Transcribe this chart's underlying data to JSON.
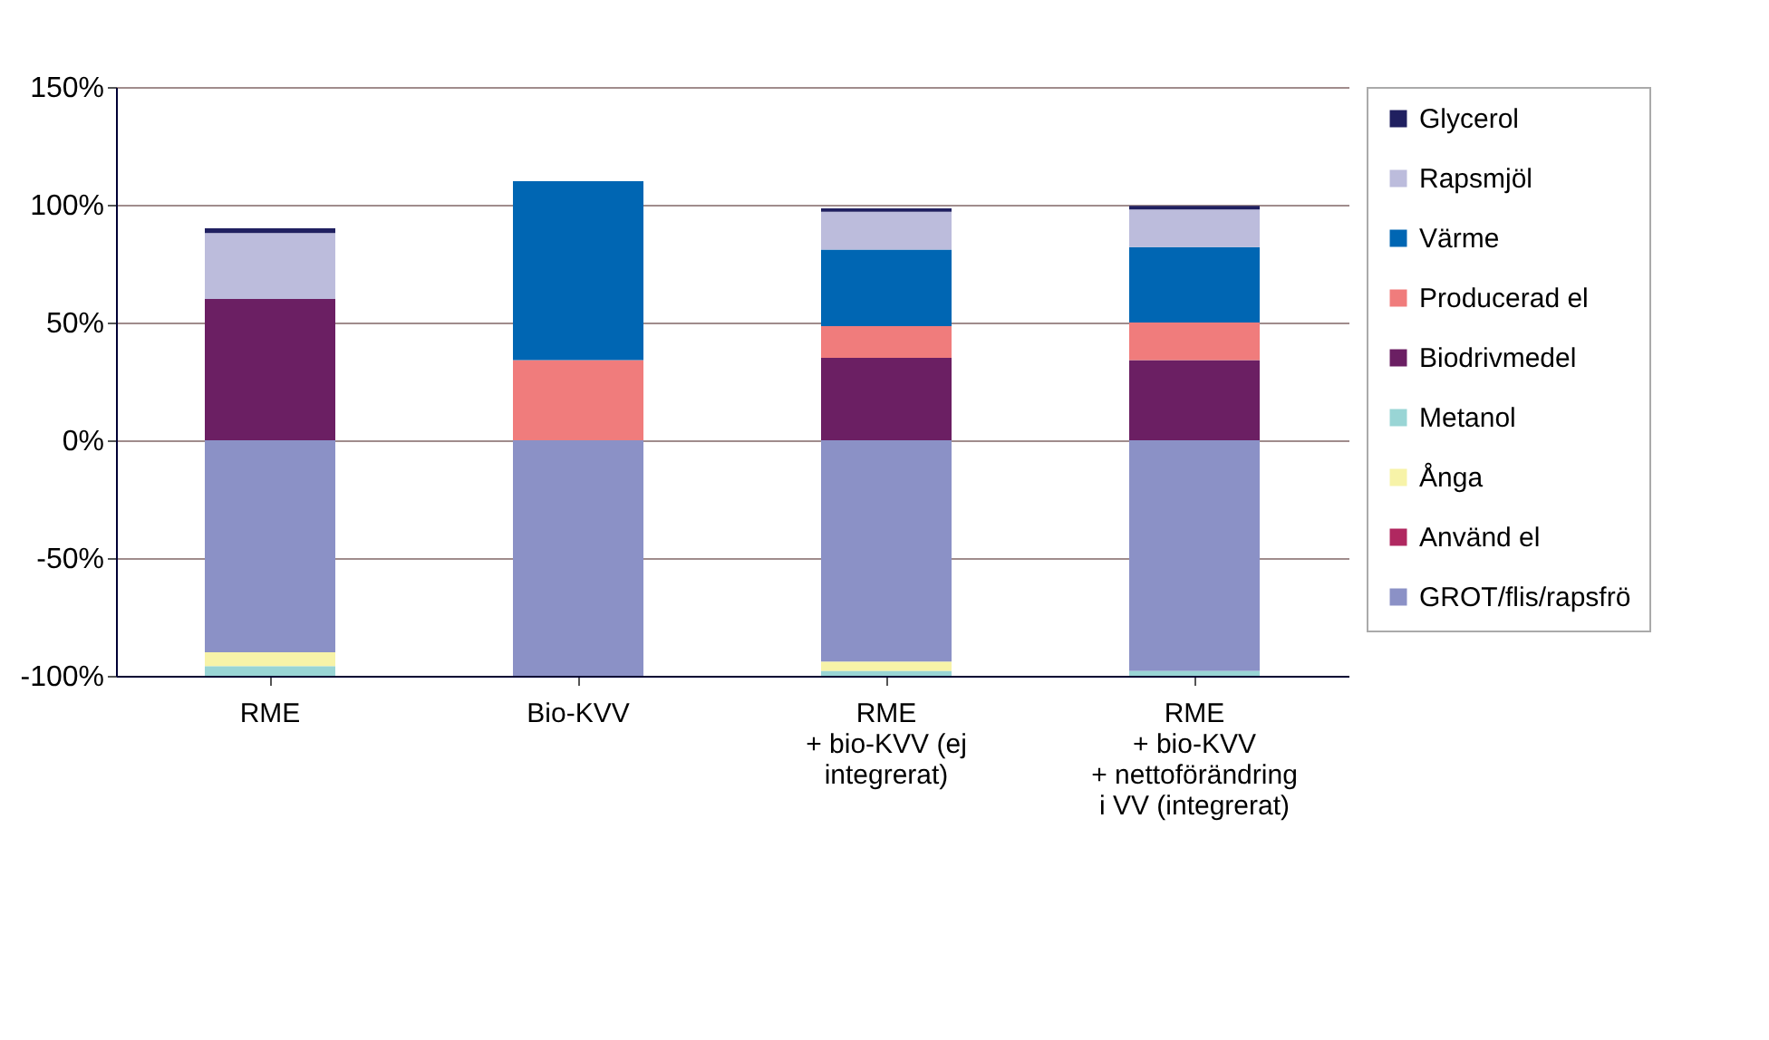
{
  "chart_data": {
    "type": "bar",
    "stacked": true,
    "categories": [
      "RME",
      "Bio-KVV",
      "RME + bio-KVV (ej integrerat)",
      "RME + bio-KVV + nettoförändring i VV (integrerat)"
    ],
    "series": [
      {
        "name": "GROT/flis/rapsfrö",
        "color": "#8b91c6",
        "values": [
          -90,
          -100,
          -94,
          -98
        ]
      },
      {
        "name": "Använd el",
        "color": "#b02860",
        "values": [
          null,
          null,
          null,
          null
        ]
      },
      {
        "name": "Ånga",
        "color": "#f7f3a8",
        "values": [
          -6,
          null,
          -4,
          null
        ]
      },
      {
        "name": "Metanol",
        "color": "#99d5d5",
        "values": [
          -4,
          null,
          -2,
          -2
        ]
      },
      {
        "name": "Biodrivmedel",
        "color": "#6b1f63",
        "values": [
          60,
          null,
          35,
          34
        ]
      },
      {
        "name": "Producerad el",
        "color": "#f07c7c",
        "values": [
          null,
          34,
          13.5,
          16
        ]
      },
      {
        "name": "Värme",
        "color": "#0066b3",
        "values": [
          null,
          76,
          32.5,
          32
        ]
      },
      {
        "name": "Rapsmjöl",
        "color": "#bcbcdc",
        "values": [
          28,
          null,
          16,
          16
        ]
      },
      {
        "name": "Glycerol",
        "color": "#202060",
        "values": [
          2,
          null,
          1.5,
          1.5
        ]
      }
    ],
    "ylim": [
      -100,
      150
    ],
    "yticks": [
      {
        "value": -100,
        "label": "-100%"
      },
      {
        "value": -50,
        "label": "-50%"
      },
      {
        "value": 0,
        "label": "0%"
      },
      {
        "value": 50,
        "label": "50%"
      },
      {
        "value": 100,
        "label": "100%"
      },
      {
        "value": 150,
        "label": "150%"
      }
    ],
    "grid": "y",
    "legend": "right"
  }
}
